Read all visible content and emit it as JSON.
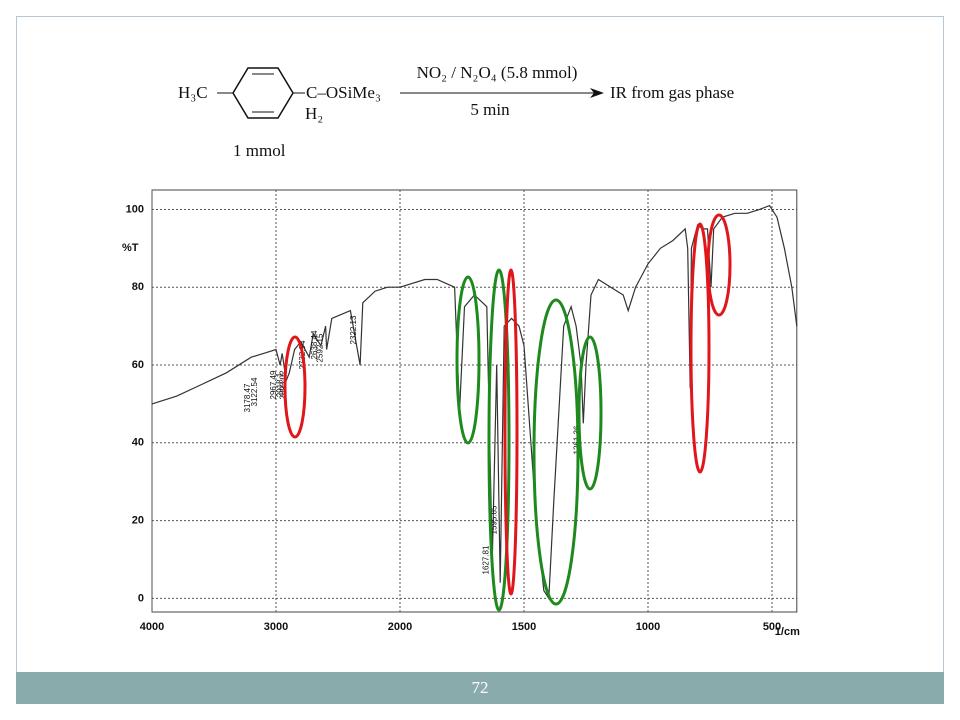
{
  "scheme": {
    "reactant_left": "H₃C",
    "reactant_right": "C–OSiMe₃",
    "reactant_ch2": "H₂",
    "amount": "1 mmol",
    "reagent": "NO₂ / N₂O₄ (5.8 mmol)",
    "time": "5 min",
    "product": "IR from gas phase"
  },
  "chart_data": {
    "type": "line",
    "color": "#333333",
    "ylabel": "%T",
    "xlabel": "1/cm",
    "x": [
      4000,
      3800,
      3600,
      3400,
      3200,
      3100,
      3000,
      2967,
      2950,
      2918,
      2893,
      2850,
      2800,
      2732,
      2700,
      2638,
      2600,
      2592,
      2550,
      2400,
      2322,
      2300,
      2200,
      2100,
      2000,
      1900,
      1850,
      1780,
      1760,
      1740,
      1700,
      1650,
      1628,
      1610,
      1596,
      1580,
      1550,
      1520,
      1500,
      1450,
      1420,
      1400,
      1380,
      1340,
      1310,
      1290,
      1270,
      1261,
      1250,
      1230,
      1200,
      1150,
      1100,
      1080,
      1050,
      1000,
      950,
      900,
      850,
      840,
      830,
      825,
      800,
      780,
      760,
      746,
      735,
      700,
      650,
      600,
      550,
      510,
      480,
      450,
      420,
      400
    ],
    "values": [
      50,
      52,
      55,
      58,
      62,
      63,
      64,
      60,
      63,
      56,
      58,
      64,
      66,
      62,
      68,
      65,
      70,
      64,
      72,
      74,
      60,
      76,
      79,
      80,
      80,
      82,
      82,
      80,
      48,
      75,
      78,
      75,
      10,
      60,
      4,
      70,
      72,
      70,
      65,
      20,
      2,
      0,
      25,
      70,
      75,
      70,
      60,
      45,
      60,
      78,
      82,
      80,
      78,
      74,
      80,
      86,
      90,
      92,
      95,
      90,
      54,
      90,
      96,
      95,
      95,
      80,
      95,
      98,
      99,
      99,
      100,
      101,
      98,
      90,
      80,
      70
    ],
    "xlim": [
      4000,
      400
    ],
    "ylim": [
      -3.5,
      105
    ],
    "xticks": [
      4000,
      3000,
      2000,
      1500,
      1000,
      500
    ],
    "yticks": [
      0,
      20,
      40,
      60,
      80,
      100
    ],
    "grid": true,
    "peak_labels": [
      3178.47,
      3122.54,
      2967.49,
      2918.1,
      2893.02,
      2732.94,
      2638.44,
      2592.15,
      2322.13,
      1627.81,
      1595.85,
      1261.36
    ]
  },
  "footer": {
    "page": "72"
  }
}
